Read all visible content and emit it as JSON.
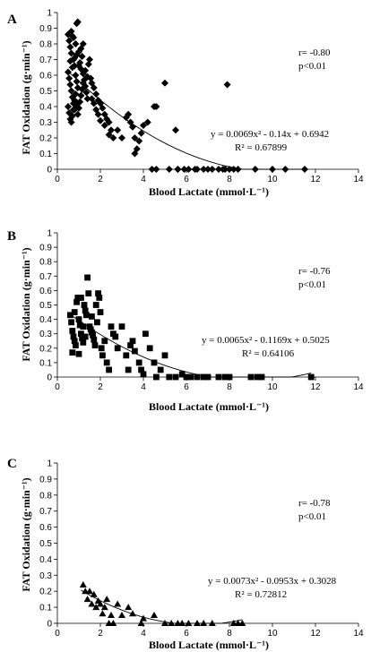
{
  "chart_data": [
    {
      "type": "scatter",
      "panel": "A",
      "marker": "diamond",
      "xlabel": "Blood Lactate (mmol·L⁻¹)",
      "ylabel": "FAT Oxidation (g·min⁻¹)",
      "xlim": [
        0,
        14
      ],
      "ylim": [
        0,
        1
      ],
      "xticks": [
        "0",
        "2",
        "4",
        "6",
        "8",
        "10",
        "12",
        "14"
      ],
      "yticks": [
        "0",
        "0.1",
        "0.2",
        "0.3",
        "0.4",
        "0.5",
        "0.6",
        "0.7",
        "0.8",
        "0.9",
        "1"
      ],
      "stats": {
        "r": "r= -0.80",
        "p": "p<0.01"
      },
      "equation": "y = 0.0069x² - 0.14x + 0.6942",
      "r2": "R² = 0.67899",
      "trend": {
        "a": 0.0069,
        "b": -0.14,
        "c": 0.6942,
        "xmin": 0.5,
        "xmax": 11.5
      },
      "points": [
        [
          0.5,
          0.86
        ],
        [
          0.55,
          0.82
        ],
        [
          0.6,
          0.78
        ],
        [
          0.65,
          0.74
        ],
        [
          0.7,
          0.85
        ],
        [
          0.75,
          0.7
        ],
        [
          0.8,
          0.66
        ],
        [
          0.85,
          0.8
        ],
        [
          0.9,
          0.93
        ],
        [
          0.95,
          0.94
        ],
        [
          0.5,
          0.62
        ],
        [
          0.55,
          0.58
        ],
        [
          0.6,
          0.54
        ],
        [
          0.65,
          0.5
        ],
        [
          0.7,
          0.46
        ],
        [
          0.75,
          0.42
        ],
        [
          0.8,
          0.38
        ],
        [
          0.85,
          0.6
        ],
        [
          0.9,
          0.56
        ],
        [
          0.95,
          0.52
        ],
        [
          1.0,
          0.75
        ],
        [
          1.05,
          0.68
        ],
        [
          1.1,
          0.64
        ],
        [
          1.15,
          0.72
        ],
        [
          1.2,
          0.61
        ],
        [
          1.25,
          0.57
        ],
        [
          1.3,
          0.53
        ],
        [
          1.35,
          0.49
        ],
        [
          1.4,
          0.45
        ],
        [
          0.5,
          0.4
        ],
        [
          0.55,
          0.36
        ],
        [
          0.6,
          0.32
        ],
        [
          0.65,
          0.3
        ],
        [
          0.7,
          0.34
        ],
        [
          0.75,
          0.38
        ],
        [
          0.8,
          0.44
        ],
        [
          0.85,
          0.48
        ],
        [
          0.9,
          0.41
        ],
        [
          0.95,
          0.35
        ],
        [
          1.0,
          0.39
        ],
        [
          1.05,
          0.43
        ],
        [
          1.1,
          0.47
        ],
        [
          1.15,
          0.51
        ],
        [
          1.2,
          0.55
        ],
        [
          1.3,
          0.63
        ],
        [
          1.4,
          0.59
        ],
        [
          0.6,
          0.69
        ],
        [
          0.7,
          0.65
        ],
        [
          0.8,
          0.71
        ],
        [
          0.9,
          0.73
        ],
        [
          1.0,
          0.66
        ],
        [
          1.1,
          0.77
        ],
        [
          1.2,
          0.8
        ],
        [
          0.65,
          0.88
        ],
        [
          0.75,
          0.84
        ],
        [
          1.45,
          0.67
        ],
        [
          1.5,
          0.7
        ],
        [
          1.55,
          0.58
        ],
        [
          1.6,
          0.55
        ],
        [
          1.7,
          0.52
        ],
        [
          1.8,
          0.48
        ],
        [
          1.9,
          0.44
        ],
        [
          2.0,
          0.42
        ],
        [
          2.1,
          0.39
        ],
        [
          2.2,
          0.35
        ],
        [
          2.3,
          0.32
        ],
        [
          2.4,
          0.3
        ],
        [
          2.5,
          0.25
        ],
        [
          1.6,
          0.45
        ],
        [
          1.7,
          0.42
        ],
        [
          1.8,
          0.38
        ],
        [
          1.9,
          0.35
        ],
        [
          2.0,
          0.31
        ],
        [
          2.2,
          0.28
        ],
        [
          2.4,
          0.22
        ],
        [
          2.6,
          0.2
        ],
        [
          2.8,
          0.25
        ],
        [
          3.0,
          0.2
        ],
        [
          3.2,
          0.33
        ],
        [
          3.4,
          0.3
        ],
        [
          3.5,
          0.27
        ],
        [
          3.6,
          0.2
        ],
        [
          3.8,
          0.18
        ],
        [
          3.9,
          0.23
        ],
        [
          4.0,
          0.28
        ],
        [
          4.2,
          0.3
        ],
        [
          4.5,
          0.4
        ],
        [
          4.6,
          0.4
        ],
        [
          5.0,
          0.55
        ],
        [
          5.5,
          0.25
        ],
        [
          3.3,
          0.35
        ],
        [
          3.7,
          0.13
        ],
        [
          3.6,
          0.1
        ],
        [
          5.6,
          0.0
        ],
        [
          7.9,
          0.54
        ],
        [
          4.4,
          0.0
        ],
        [
          4.6,
          0.0
        ],
        [
          5.2,
          0.0
        ],
        [
          5.6,
          0.0
        ],
        [
          5.9,
          0.0
        ],
        [
          6.1,
          0.0
        ],
        [
          6.4,
          0.0
        ],
        [
          6.8,
          0.0
        ],
        [
          7.2,
          0.0
        ],
        [
          7.5,
          0.0
        ],
        [
          7.8,
          0.0
        ],
        [
          8.0,
          0.0
        ],
        [
          8.2,
          0.0
        ],
        [
          8.4,
          0.0
        ],
        [
          9.2,
          0.0
        ],
        [
          10.0,
          0.0
        ],
        [
          10.6,
          0.0
        ],
        [
          11.5,
          0.0
        ],
        [
          6.5,
          0.0
        ],
        [
          7.0,
          0.0
        ],
        [
          7.7,
          0.0
        ]
      ]
    },
    {
      "type": "scatter",
      "panel": "B",
      "marker": "square",
      "xlabel": "Blood Lactate (mmol·L⁻¹)",
      "ylabel": "FAT Oxidation (g·min⁻¹)",
      "xlim": [
        0,
        14
      ],
      "ylim": [
        0,
        1
      ],
      "xticks": [
        "0",
        "2",
        "4",
        "6",
        "8",
        "10",
        "12",
        "14"
      ],
      "yticks": [
        "0",
        "0.1",
        "0.2",
        "0.3",
        "0.4",
        "0.5",
        "0.6",
        "0.7",
        "0.8",
        "0.9",
        "1"
      ],
      "stats": {
        "r": "r= -0.76",
        "p": "p<0.01"
      },
      "equation": "y = 0.0065x² - 0.1169x + 0.5025",
      "r2": "R² = 0.64106",
      "trend": {
        "a": 0.0065,
        "b": -0.1169,
        "c": 0.5025,
        "xmin": 0.6,
        "xmax": 11.8
      },
      "points": [
        [
          0.6,
          0.43
        ],
        [
          0.65,
          0.38
        ],
        [
          0.7,
          0.32
        ],
        [
          0.75,
          0.28
        ],
        [
          0.8,
          0.25
        ],
        [
          0.85,
          0.22
        ],
        [
          0.9,
          0.52
        ],
        [
          0.95,
          0.55
        ],
        [
          1.0,
          0.4
        ],
        [
          1.05,
          0.36
        ],
        [
          1.1,
          0.3
        ],
        [
          1.15,
          0.27
        ],
        [
          1.2,
          0.24
        ],
        [
          1.25,
          0.5
        ],
        [
          1.3,
          0.46
        ],
        [
          1.35,
          0.43
        ],
        [
          1.4,
          0.69
        ],
        [
          1.45,
          0.58
        ],
        [
          1.5,
          0.35
        ],
        [
          1.55,
          0.33
        ],
        [
          1.6,
          0.31
        ],
        [
          1.65,
          0.29
        ],
        [
          1.7,
          0.26
        ],
        [
          1.75,
          0.22
        ],
        [
          1.8,
          0.5
        ],
        [
          1.85,
          0.38
        ],
        [
          1.9,
          0.58
        ],
        [
          1.95,
          0.55
        ],
        [
          2.0,
          0.45
        ],
        [
          2.05,
          0.2
        ],
        [
          2.1,
          0.15
        ],
        [
          2.2,
          0.25
        ],
        [
          2.3,
          0.1
        ],
        [
          2.4,
          0.05
        ],
        [
          2.5,
          0.35
        ],
        [
          2.6,
          0.3
        ],
        [
          2.7,
          0.28
        ],
        [
          2.8,
          0.2
        ],
        [
          3.0,
          0.35
        ],
        [
          3.2,
          0.15
        ],
        [
          3.4,
          0.22
        ],
        [
          3.5,
          0.25
        ],
        [
          3.6,
          0.18
        ],
        [
          3.8,
          0.1
        ],
        [
          3.9,
          0.05
        ],
        [
          4.0,
          0.02
        ],
        [
          4.1,
          0.3
        ],
        [
          4.3,
          0.2
        ],
        [
          4.5,
          0.1
        ],
        [
          4.8,
          0.05
        ],
        [
          5.0,
          0.15
        ],
        [
          5.2,
          0.0
        ],
        [
          5.5,
          0.0
        ],
        [
          5.8,
          0.02
        ],
        [
          6.0,
          0.0
        ],
        [
          6.2,
          0.0
        ],
        [
          6.5,
          0.0
        ],
        [
          7.0,
          0.0
        ],
        [
          7.5,
          0.0
        ],
        [
          7.8,
          0.0
        ],
        [
          8.0,
          0.0
        ],
        [
          9.0,
          0.0
        ],
        [
          9.3,
          0.0
        ],
        [
          9.5,
          0.0
        ],
        [
          11.8,
          0.0
        ],
        [
          0.7,
          0.17
        ],
        [
          1.0,
          0.16
        ],
        [
          1.2,
          0.35
        ],
        [
          1.3,
          0.28
        ],
        [
          1.6,
          0.42
        ],
        [
          3.3,
          0.05
        ],
        [
          4.6,
          0.0
        ],
        [
          6.8,
          0.0
        ],
        [
          0.8,
          0.45
        ],
        [
          1.1,
          0.55
        ]
      ]
    },
    {
      "type": "scatter",
      "panel": "C",
      "marker": "triangle",
      "xlabel": "Blood Lactate (mmol·L⁻¹)",
      "ylabel": "FAT Oxidation (g·min⁻¹)",
      "xlim": [
        0,
        14
      ],
      "ylim": [
        0,
        1
      ],
      "xticks": [
        "0",
        "2",
        "4",
        "6",
        "8",
        "10",
        "12",
        "14"
      ],
      "yticks": [
        "0",
        "0.1",
        "0.2",
        "0.3",
        "0.4",
        "0.5",
        "0.6",
        "0.7",
        "0.8",
        "0.9",
        "1"
      ],
      "stats": {
        "r": "r= -0.78",
        "p": "p<0.01"
      },
      "equation": "y = 0.0073x² - 0.0953x + 0.3028",
      "r2": "R² = 0.72812",
      "trend": {
        "a": 0.0073,
        "b": -0.0953,
        "c": 0.3028,
        "xmin": 1.1,
        "xmax": 8.6
      },
      "points": [
        [
          1.2,
          0.24
        ],
        [
          1.3,
          0.2
        ],
        [
          1.4,
          0.15
        ],
        [
          1.5,
          0.2
        ],
        [
          1.6,
          0.12
        ],
        [
          1.7,
          0.18
        ],
        [
          1.8,
          0.1
        ],
        [
          1.9,
          0.14
        ],
        [
          2.0,
          0.12
        ],
        [
          2.1,
          0.06
        ],
        [
          2.2,
          0.1
        ],
        [
          2.3,
          0.15
        ],
        [
          2.4,
          0.0
        ],
        [
          2.5,
          0.05
        ],
        [
          2.6,
          0.0
        ],
        [
          2.8,
          0.12
        ],
        [
          3.0,
          0.05
        ],
        [
          3.3,
          0.1
        ],
        [
          3.5,
          0.06
        ],
        [
          3.9,
          0.0
        ],
        [
          4.0,
          0.03
        ],
        [
          4.5,
          0.05
        ],
        [
          5.0,
          0.0
        ],
        [
          5.3,
          0.0
        ],
        [
          5.6,
          0.0
        ],
        [
          5.8,
          0.0
        ],
        [
          6.1,
          0.0
        ],
        [
          6.5,
          0.0
        ],
        [
          6.8,
          0.0
        ],
        [
          7.2,
          0.0
        ],
        [
          8.2,
          0.0
        ],
        [
          8.4,
          0.0
        ],
        [
          8.6,
          0.0
        ]
      ]
    }
  ]
}
